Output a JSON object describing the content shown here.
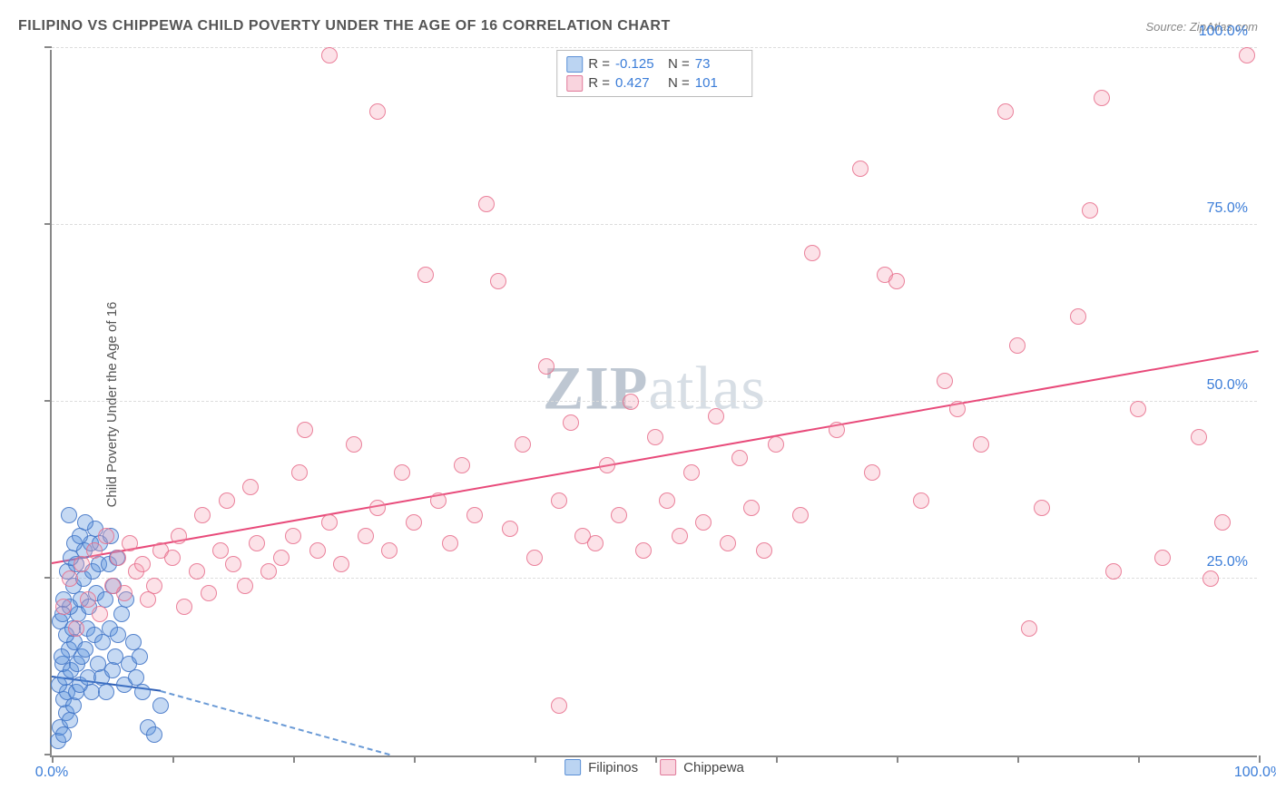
{
  "title": "FILIPINO VS CHIPPEWA CHILD POVERTY UNDER THE AGE OF 16 CORRELATION CHART",
  "source": "Source: ZipAtlas.com",
  "ylabel": "Child Poverty Under the Age of 16",
  "watermark_zip": "ZIP",
  "watermark_atlas": "atlas",
  "chart": {
    "type": "scatter",
    "xlim": [
      0,
      100
    ],
    "ylim": [
      0,
      100
    ],
    "x_ticks": [
      0,
      10,
      20,
      30,
      40,
      50,
      60,
      70,
      80,
      90,
      100
    ],
    "y_ticks": [
      0,
      25,
      50,
      75,
      100
    ],
    "x_tick_labels": {
      "0": "0.0%",
      "100": "100.0%"
    },
    "y_tick_labels": {
      "25": "25.0%",
      "50": "50.0%",
      "75": "75.0%",
      "100": "100.0%"
    },
    "grid_y": [
      25,
      50,
      75,
      100
    ],
    "grid_color": "#dddddd",
    "background": "#ffffff",
    "point_radius": 9,
    "series": [
      {
        "name": "Filipinos",
        "color_fill": "rgba(88,145,222,0.35)",
        "color_stroke": "rgba(70,120,200,0.9)",
        "R": "-0.125",
        "N": "73",
        "trend": {
          "x0": 0,
          "y0": 11,
          "x1_solid": 9,
          "y1_solid": 9,
          "x1_dash": 28,
          "y1_dash": 0,
          "color": "#2f5fb5"
        },
        "points": [
          [
            0.5,
            2
          ],
          [
            0.7,
            4
          ],
          [
            1.0,
            3
          ],
          [
            1.2,
            6
          ],
          [
            1.0,
            8
          ],
          [
            1.5,
            5
          ],
          [
            1.3,
            9
          ],
          [
            1.8,
            7
          ],
          [
            0.6,
            10
          ],
          [
            1.1,
            11
          ],
          [
            2.0,
            9
          ],
          [
            0.9,
            13
          ],
          [
            1.6,
            12
          ],
          [
            2.3,
            10
          ],
          [
            1.4,
            15
          ],
          [
            0.8,
            14
          ],
          [
            2.1,
            13
          ],
          [
            1.9,
            16
          ],
          [
            2.5,
            14
          ],
          [
            1.2,
            17
          ],
          [
            3.0,
            11
          ],
          [
            1.7,
            18
          ],
          [
            2.8,
            15
          ],
          [
            3.3,
            9
          ],
          [
            0.7,
            19
          ],
          [
            2.2,
            20
          ],
          [
            1.5,
            21
          ],
          [
            3.8,
            13
          ],
          [
            2.9,
            18
          ],
          [
            1.0,
            22
          ],
          [
            4.1,
            11
          ],
          [
            3.5,
            17
          ],
          [
            2.4,
            22
          ],
          [
            1.8,
            24
          ],
          [
            4.5,
            9
          ],
          [
            3.1,
            21
          ],
          [
            0.9,
            20
          ],
          [
            5.0,
            12
          ],
          [
            2.6,
            25
          ],
          [
            4.2,
            16
          ],
          [
            1.3,
            26
          ],
          [
            3.7,
            23
          ],
          [
            5.3,
            14
          ],
          [
            2.0,
            27
          ],
          [
            4.8,
            18
          ],
          [
            3.4,
            26
          ],
          [
            1.6,
            28
          ],
          [
            6.0,
            10
          ],
          [
            5.5,
            17
          ],
          [
            2.7,
            29
          ],
          [
            4.4,
            22
          ],
          [
            3.9,
            27
          ],
          [
            6.4,
            13
          ],
          [
            1.9,
            30
          ],
          [
            5.1,
            24
          ],
          [
            7.0,
            11
          ],
          [
            3.2,
            30
          ],
          [
            6.8,
            16
          ],
          [
            4.7,
            27
          ],
          [
            5.8,
            20
          ],
          [
            7.5,
            9
          ],
          [
            2.3,
            31
          ],
          [
            8.0,
            4
          ],
          [
            4.0,
            30
          ],
          [
            6.2,
            22
          ],
          [
            8.5,
            3
          ],
          [
            5.4,
            28
          ],
          [
            9.0,
            7
          ],
          [
            4.9,
            31
          ],
          [
            3.6,
            32
          ],
          [
            7.3,
            14
          ],
          [
            2.8,
            33
          ],
          [
            1.4,
            34
          ]
        ]
      },
      {
        "name": "Chippewa",
        "color_fill": "rgba(244,160,180,0.30)",
        "color_stroke": "rgba(230,110,140,0.85)",
        "R": "0.427",
        "N": "101",
        "trend": {
          "x0": 0,
          "y0": 27,
          "x1": 100,
          "y1": 57,
          "color": "#e84a7a"
        },
        "points": [
          [
            1,
            21
          ],
          [
            2,
            18
          ],
          [
            1.5,
            25
          ],
          [
            3,
            22
          ],
          [
            2.5,
            27
          ],
          [
            4,
            20
          ],
          [
            3.5,
            29
          ],
          [
            5,
            24
          ],
          [
            4.5,
            31
          ],
          [
            6,
            23
          ],
          [
            5.5,
            28
          ],
          [
            7,
            26
          ],
          [
            6.5,
            30
          ],
          [
            8,
            22
          ],
          [
            7.5,
            27
          ],
          [
            9,
            29
          ],
          [
            8.5,
            24
          ],
          [
            10,
            28
          ],
          [
            11,
            21
          ],
          [
            12,
            26
          ],
          [
            10.5,
            31
          ],
          [
            13,
            23
          ],
          [
            14,
            29
          ],
          [
            12.5,
            34
          ],
          [
            15,
            27
          ],
          [
            16,
            24
          ],
          [
            14.5,
            36
          ],
          [
            17,
            30
          ],
          [
            18,
            26
          ],
          [
            16.5,
            38
          ],
          [
            19,
            28
          ],
          [
            20,
            31
          ],
          [
            21,
            46
          ],
          [
            22,
            29
          ],
          [
            23,
            33
          ],
          [
            20.5,
            40
          ],
          [
            24,
            27
          ],
          [
            25,
            44
          ],
          [
            26,
            31
          ],
          [
            27,
            35
          ],
          [
            23,
            99
          ],
          [
            28,
            29
          ],
          [
            29,
            40
          ],
          [
            30,
            33
          ],
          [
            31,
            68
          ],
          [
            32,
            36
          ],
          [
            33,
            30
          ],
          [
            27,
            91
          ],
          [
            34,
            41
          ],
          [
            35,
            34
          ],
          [
            36,
            78
          ],
          [
            37,
            67
          ],
          [
            38,
            32
          ],
          [
            39,
            44
          ],
          [
            40,
            28
          ],
          [
            41,
            55
          ],
          [
            42,
            36
          ],
          [
            43,
            47
          ],
          [
            44,
            31
          ],
          [
            45,
            30
          ],
          [
            46,
            41
          ],
          [
            47,
            34
          ],
          [
            48,
            50
          ],
          [
            49,
            29
          ],
          [
            50,
            45
          ],
          [
            51,
            36
          ],
          [
            52,
            31
          ],
          [
            53,
            40
          ],
          [
            54,
            33
          ],
          [
            42,
            7
          ],
          [
            55,
            48
          ],
          [
            56,
            30
          ],
          [
            57,
            42
          ],
          [
            58,
            35
          ],
          [
            59,
            29
          ],
          [
            60,
            44
          ],
          [
            62,
            34
          ],
          [
            63,
            71
          ],
          [
            65,
            46
          ],
          [
            67,
            83
          ],
          [
            68,
            40
          ],
          [
            69,
            68
          ],
          [
            70,
            67
          ],
          [
            72,
            36
          ],
          [
            74,
            53
          ],
          [
            75,
            49
          ],
          [
            77,
            44
          ],
          [
            79,
            91
          ],
          [
            80,
            58
          ],
          [
            81,
            18
          ],
          [
            82,
            35
          ],
          [
            85,
            62
          ],
          [
            86,
            77
          ],
          [
            87,
            93
          ],
          [
            88,
            26
          ],
          [
            90,
            49
          ],
          [
            92,
            28
          ],
          [
            95,
            45
          ],
          [
            97,
            33
          ],
          [
            96,
            25
          ],
          [
            99,
            99
          ]
        ]
      }
    ]
  },
  "stats_legend": {
    "rows": [
      {
        "swatch": "blue",
        "R_label": "R =",
        "R": "-0.125",
        "N_label": "N =",
        "N": "73"
      },
      {
        "swatch": "pink",
        "R_label": "R =",
        "R": "0.427",
        "N_label": "N =",
        "N": "101"
      }
    ]
  },
  "bottom_legend": [
    {
      "swatch": "blue",
      "label": "Filipinos"
    },
    {
      "swatch": "pink",
      "label": "Chippewa"
    }
  ]
}
